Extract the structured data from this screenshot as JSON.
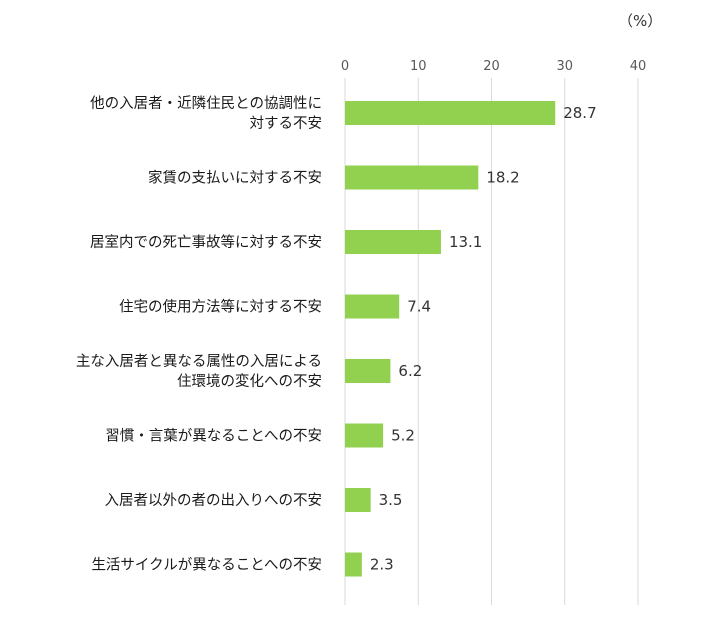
{
  "chart_data": {
    "type": "bar",
    "orientation": "horizontal",
    "unit_label": "（%）",
    "categories": [
      [
        "他の入居者・近隣住民との協調性に",
        "対する不安"
      ],
      [
        "家賃の支払いに対する不安"
      ],
      [
        "居室内での死亡事故等に対する不安"
      ],
      [
        "住宅の使用方法等に対する不安"
      ],
      [
        "主な入居者と異なる属性の入居による",
        "住環境の変化への不安"
      ],
      [
        "習慣・言葉が異なることへの不安"
      ],
      [
        "入居者以外の者の出入りへの不安"
      ],
      [
        "生活サイクルが異なることへの不安"
      ]
    ],
    "values": [
      28.7,
      18.2,
      13.1,
      7.4,
      6.2,
      5.2,
      3.5,
      2.3
    ],
    "value_labels": [
      "28.7",
      "18.2",
      "13.1",
      "7.4",
      "6.2",
      "5.2",
      "3.5",
      "2.3"
    ],
    "x_ticks": [
      0,
      10,
      20,
      30,
      40
    ],
    "x_tick_labels": [
      "0",
      "10",
      "20",
      "30",
      "40"
    ],
    "xlim": [
      0,
      40
    ],
    "grid": true,
    "axis_position": "top",
    "bar_color": "#92d050",
    "grid_color": "#d9d9d9"
  }
}
